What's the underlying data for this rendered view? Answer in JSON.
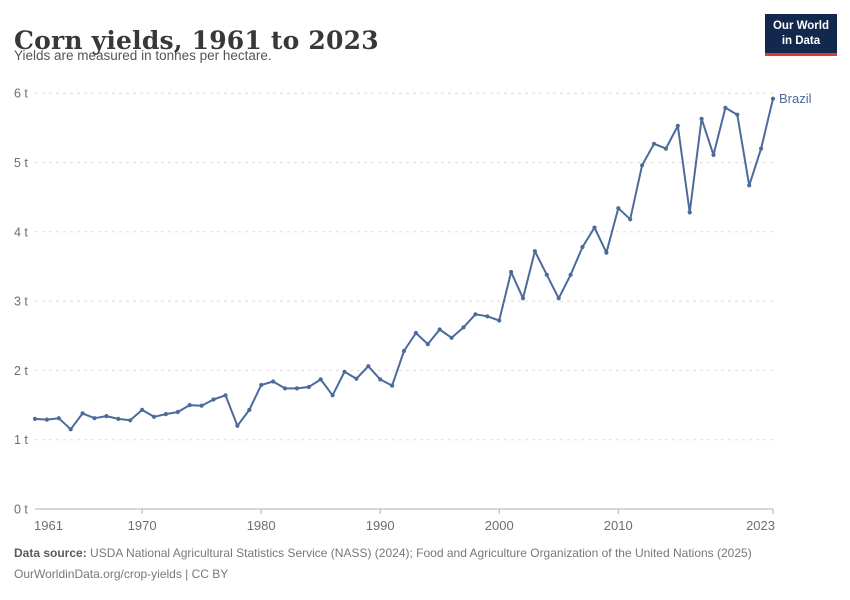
{
  "header": {
    "logo": {
      "line1": "Our World",
      "line2": "in Data",
      "bg_color": "#12294d",
      "accent_color": "#d93a34"
    }
  },
  "chart_data": {
    "type": "line",
    "title": "Corn yields, 1961 to 2023",
    "subtitle": "Yields are measured in tonnes per hectare.",
    "xlabel": "",
    "ylabel": "",
    "unit": "tonnes per hectare",
    "xlim": [
      1961,
      2023
    ],
    "ylim": [
      0,
      6
    ],
    "grid": "horizontal-dashed",
    "legend_position": "end-of-line-label",
    "x_tick_labels": [
      "1961",
      "1970",
      "1980",
      "1990",
      "2000",
      "2010",
      "2023"
    ],
    "x_tick_values": [
      1961,
      1970,
      1980,
      1990,
      2000,
      2010,
      2023
    ],
    "y_tick_labels": [
      "0 t",
      "1 t",
      "2 t",
      "3 t",
      "4 t",
      "5 t",
      "6 t"
    ],
    "y_tick_values": [
      0,
      1,
      2,
      3,
      4,
      5,
      6
    ],
    "x": [
      1961,
      1962,
      1963,
      1964,
      1965,
      1966,
      1967,
      1968,
      1969,
      1970,
      1971,
      1972,
      1973,
      1974,
      1975,
      1976,
      1977,
      1978,
      1979,
      1980,
      1981,
      1982,
      1983,
      1984,
      1985,
      1986,
      1987,
      1988,
      1989,
      1990,
      1991,
      1992,
      1993,
      1994,
      1995,
      1996,
      1997,
      1998,
      1999,
      2000,
      2001,
      2002,
      2003,
      2004,
      2005,
      2006,
      2007,
      2008,
      2009,
      2010,
      2011,
      2012,
      2013,
      2014,
      2015,
      2016,
      2017,
      2018,
      2019,
      2020,
      2021,
      2022,
      2023
    ],
    "series": [
      {
        "name": "Brazil",
        "color": "#4c6a9c",
        "values": [
          1.3,
          1.29,
          1.31,
          1.15,
          1.38,
          1.31,
          1.34,
          1.3,
          1.28,
          1.43,
          1.33,
          1.37,
          1.4,
          1.5,
          1.49,
          1.58,
          1.64,
          1.2,
          1.43,
          1.79,
          1.84,
          1.74,
          1.74,
          1.76,
          1.87,
          1.64,
          1.98,
          1.88,
          2.06,
          1.87,
          1.78,
          2.28,
          2.54,
          2.38,
          2.59,
          2.47,
          2.62,
          2.81,
          2.78,
          2.72,
          3.42,
          3.04,
          3.72,
          3.38,
          3.04,
          3.38,
          3.78,
          4.06,
          3.7,
          4.34,
          4.18,
          4.96,
          5.27,
          5.2,
          5.53,
          4.28,
          5.63,
          5.11,
          5.79,
          5.69,
          4.67,
          5.2,
          5.92
        ]
      }
    ]
  },
  "footer": {
    "datasource_label": "Data source:",
    "datasource_text": " USDA National Agricultural Statistics Service (NASS) (2024); Food and Agriculture Organization of the United Nations (2025)",
    "link_text": "OurWorldinData.org/crop-yields | CC BY"
  }
}
